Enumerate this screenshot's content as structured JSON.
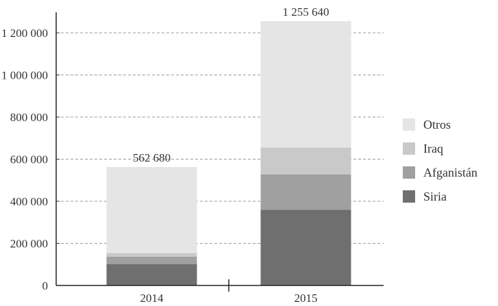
{
  "chart_data": {
    "type": "bar",
    "stacked": true,
    "categories": [
      "2014",
      "2015"
    ],
    "series": [
      {
        "name": "Siria",
        "values": [
          102000,
          360000
        ],
        "color": "#6f6f6f"
      },
      {
        "name": "Afganistán",
        "values": [
          35000,
          168000
        ],
        "color": "#a0a0a0"
      },
      {
        "name": "Iraq",
        "values": [
          17000,
          127000
        ],
        "color": "#c9c9c9"
      },
      {
        "name": "Otros",
        "values": [
          408680,
          600640
        ],
        "color": "#e5e5e5"
      }
    ],
    "totals": [
      562680,
      1255640
    ],
    "total_labels": [
      "562 680",
      "1 255 640"
    ],
    "yticks": [
      0,
      200000,
      400000,
      600000,
      800000,
      1000000,
      1200000
    ],
    "ytick_labels": [
      "0",
      "200 000",
      "400 000",
      "600 000",
      "800 000",
      "1 000 000",
      "1 200 000"
    ],
    "ylim": [
      0,
      1300000
    ],
    "grid": true,
    "legend_position": "right",
    "legend_order": [
      "Otros",
      "Iraq",
      "Afganistán",
      "Siria"
    ],
    "title": "",
    "xlabel": "",
    "ylabel": ""
  }
}
